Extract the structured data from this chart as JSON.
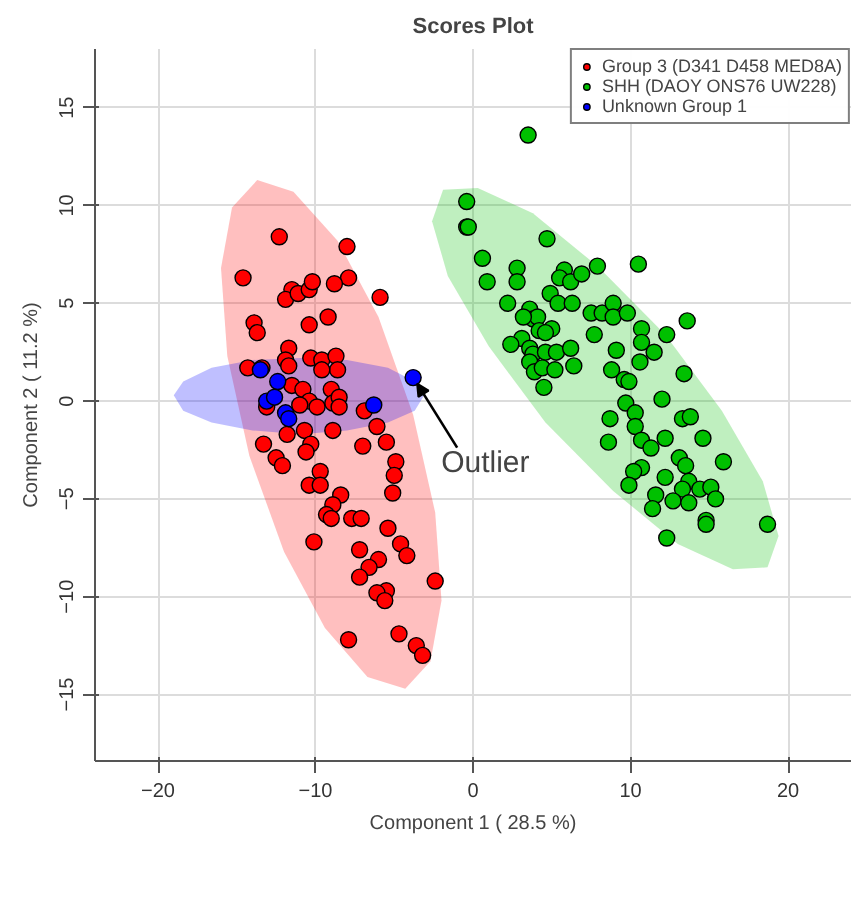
{
  "chart_data": {
    "type": "scatter",
    "title": "Scores Plot",
    "xlabel": "Component 1 ( 28.5 %)",
    "ylabel": "Component 2 ( 11.2 %)",
    "xlim": [
      -24,
      24
    ],
    "ylim": [
      -18.4,
      18.0
    ],
    "xticks": [
      -20,
      -10,
      0,
      10,
      20
    ],
    "yticks": [
      -15,
      -10,
      -5,
      0,
      5,
      10,
      15
    ],
    "grid": true,
    "legend": "top right",
    "marker": "circle",
    "annotations": [
      {
        "text": "Outlier",
        "x": -3.8,
        "y": 1.2
      }
    ],
    "series": [
      {
        "name": "Group 3 (D341 D458 MED8A)",
        "color": "#ff0000",
        "x": [
          -12.3,
          -8.0,
          -14.6,
          -7.9,
          -11.5,
          -11.9,
          -11.1,
          -10.4,
          -10.2,
          -8.8,
          -5.9,
          -13.9,
          -13.7,
          -10.4,
          -9.2,
          -11.7,
          -11.9,
          -11.7,
          -10.3,
          -9.6,
          -8.7,
          -8.6,
          -9.6,
          -14.3,
          -13.4,
          -11.5,
          -10.8,
          -9.0,
          -10.4,
          -11.0,
          -9.9,
          -8.9,
          -8.5,
          -8.5,
          -13.1,
          -6.9,
          -10.7,
          -8.9,
          -11.8,
          -6.1,
          -13.3,
          -10.3,
          -10.6,
          -7.0,
          -5.5,
          -12.5,
          -12.1,
          -4.9,
          -5.0,
          -9.7,
          -10.4,
          -9.7,
          -8.4,
          -5.1,
          -8.9,
          -9.3,
          -9.0,
          -7.7,
          -7.1,
          -5.4,
          -10.1,
          -4.6,
          -4.2,
          -7.2,
          -6.0,
          -6.6,
          -7.2,
          -2.4,
          -5.5,
          -6.1,
          -5.6,
          -7.9,
          -4.7,
          -3.6,
          -3.2
        ],
        "values": [
          8.4,
          7.9,
          6.3,
          6.3,
          5.7,
          5.2,
          5.5,
          5.7,
          6.1,
          6.0,
          5.3,
          4.0,
          3.5,
          3.9,
          4.3,
          2.7,
          2.1,
          1.8,
          2.2,
          2.1,
          2.3,
          1.6,
          1.6,
          1.7,
          1.7,
          0.8,
          0.6,
          0.6,
          0.0,
          -0.2,
          -0.3,
          -0.1,
          0.2,
          -0.3,
          -0.3,
          -0.5,
          -1.5,
          -1.5,
          -1.7,
          -1.3,
          -2.2,
          -2.2,
          -2.6,
          -2.3,
          -2.1,
          -2.9,
          -3.3,
          -3.1,
          -3.8,
          -3.6,
          -4.3,
          -4.3,
          -4.8,
          -4.7,
          -5.3,
          -5.8,
          -6.0,
          -6.0,
          -6.0,
          -6.5,
          -7.2,
          -7.3,
          -7.9,
          -7.6,
          -8.1,
          -8.5,
          -9.0,
          -9.2,
          -9.7,
          -9.8,
          -10.2,
          -12.2,
          -11.9,
          -12.5,
          -13.0
        ]
      },
      {
        "name": "SHH (DAOY ONS76 UW228)",
        "color": "#00c000",
        "x": [
          3.5,
          -0.4,
          -0.4,
          -0.3,
          4.7,
          0.6,
          10.5,
          0.9,
          2.8,
          2.8,
          5.8,
          5.5,
          6.2,
          6.9,
          7.9,
          2.2,
          4.9,
          5.4,
          6.3,
          3.6,
          3.8,
          4.1,
          3.2,
          4.2,
          5.0,
          4.6,
          7.5,
          8.2,
          8.9,
          8.9,
          9.8,
          13.6,
          3.1,
          2.4,
          3.6,
          3.8,
          4.6,
          5.3,
          6.2,
          7.7,
          10.7,
          12.3,
          10.7,
          9.1,
          11.5,
          3.6,
          3.9,
          4.4,
          5.2,
          6.4,
          8.8,
          10.6,
          13.4,
          4.5,
          9.6,
          9.9,
          9.7,
          12.0,
          10.3,
          8.7,
          13.3,
          13.8,
          10.3,
          8.6,
          10.7,
          12.2,
          14.6,
          11.3,
          13.1,
          13.5,
          15.9,
          10.7,
          10.2,
          9.9,
          12.2,
          13.7,
          13.3,
          14.4,
          15.1,
          11.6,
          12.7,
          13.7,
          15.4,
          11.4,
          14.8,
          14.8,
          18.7,
          12.3
        ],
        "values": [
          13.6,
          10.2,
          8.9,
          8.9,
          8.3,
          7.3,
          7.0,
          6.1,
          6.8,
          6.1,
          6.7,
          6.3,
          6.1,
          6.5,
          6.9,
          5.0,
          5.5,
          5.0,
          5.0,
          4.7,
          4.2,
          4.3,
          4.3,
          3.6,
          3.7,
          3.5,
          4.5,
          4.5,
          5.0,
          4.3,
          4.5,
          4.1,
          3.2,
          2.9,
          2.7,
          2.4,
          2.5,
          2.5,
          2.7,
          3.4,
          3.7,
          3.4,
          3.0,
          2.6,
          2.5,
          2.0,
          1.5,
          1.7,
          1.6,
          1.8,
          1.6,
          2.0,
          1.4,
          0.7,
          1.1,
          1.0,
          -0.1,
          0.1,
          -0.6,
          -0.9,
          -0.9,
          -0.8,
          -1.3,
          -2.1,
          -2.0,
          -1.9,
          -1.9,
          -2.4,
          -2.9,
          -3.3,
          -3.1,
          -3.4,
          -3.6,
          -4.3,
          -3.9,
          -4.1,
          -4.5,
          -4.5,
          -4.4,
          -4.8,
          -5.1,
          -5.2,
          -5.0,
          -5.5,
          -6.1,
          -6.3,
          -6.3,
          -7.0
        ]
      },
      {
        "name": "Unknown Group 1",
        "color": "#0000ff",
        "x": [
          -13.5,
          -12.4,
          -13.1,
          -12.6,
          -11.9,
          -11.7,
          -6.3,
          -3.8
        ],
        "values": [
          1.6,
          1.0,
          0.0,
          0.2,
          -0.6,
          -0.9,
          -0.2,
          1.2
        ]
      },
      {
        "type": "area",
        "marker": "none",
        "color": "#ff0000",
        "x": [
          -13.7,
          -11.4,
          -8.6,
          -6.0,
          -3.8,
          -2.4,
          -2.0,
          -2.7,
          -4.3,
          -6.7,
          -9.4,
          -12.0,
          -14.2,
          -15.6,
          -16.0,
          -15.3,
          -13.7
        ],
        "values": [
          11.3,
          10.7,
          8.2,
          4.3,
          -0.7,
          -5.7,
          -10.2,
          -13.3,
          -14.7,
          -14.1,
          -11.6,
          -7.7,
          -2.8,
          2.3,
          6.8,
          9.9,
          11.3
        ]
      },
      {
        "type": "area",
        "marker": "none",
        "color": "#00c000",
        "x": [
          -1.9,
          0.3,
          3.8,
          7.9,
          12.2,
          15.8,
          18.4,
          19.4,
          18.7,
          16.5,
          13.0,
          8.9,
          4.6,
          1.0,
          -1.6,
          -2.6,
          -1.9
        ],
        "values": [
          10.8,
          10.9,
          9.6,
          6.9,
          3.4,
          -0.5,
          -4.1,
          -6.9,
          -8.5,
          -8.6,
          -7.3,
          -4.6,
          -1.1,
          2.8,
          6.4,
          9.2,
          10.8
        ]
      },
      {
        "type": "area",
        "marker": "none",
        "color": "#0000ff",
        "x": [
          -3.1,
          -3.7,
          -5.4,
          -8.0,
          -11.0,
          -14.0,
          -16.6,
          -18.4,
          -19.0,
          -18.4,
          -16.6,
          -14.0,
          -11.0,
          -8.0,
          -5.4,
          -3.7,
          -3.1
        ],
        "values": [
          0.3,
          1.0,
          1.7,
          2.1,
          2.2,
          2.1,
          1.7,
          1.0,
          0.3,
          -0.5,
          -1.1,
          -1.5,
          -1.7,
          -1.5,
          -1.1,
          -0.5,
          0.3
        ]
      }
    ]
  }
}
